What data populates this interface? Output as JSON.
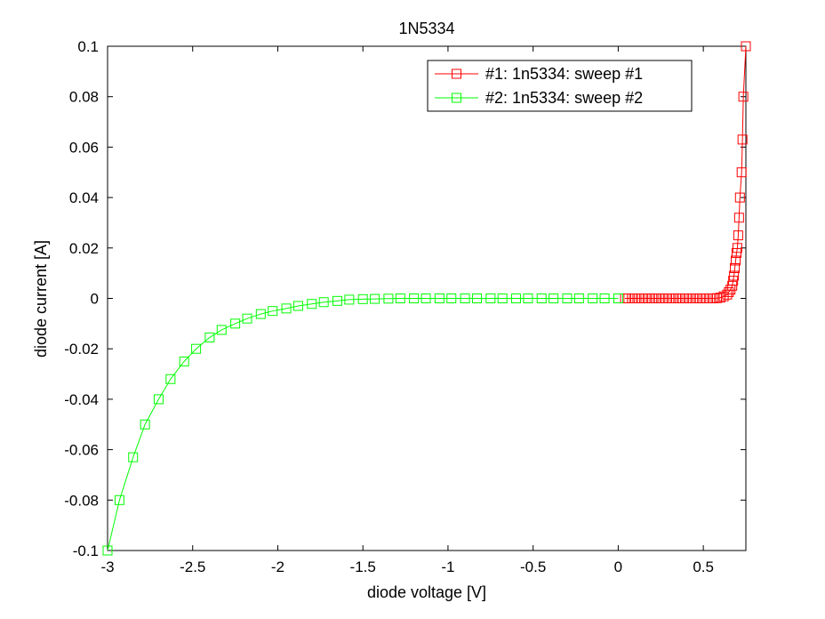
{
  "chart_data": {
    "type": "line",
    "title": "1N5334",
    "xlabel": "diode voltage [V]",
    "ylabel": "diode current [A]",
    "xlim": [
      -3,
      0.75
    ],
    "ylim": [
      -0.1,
      0.1
    ],
    "xticks": [
      -3,
      -2.5,
      -2,
      -1.5,
      -1,
      -0.5,
      0,
      0.5
    ],
    "xtick_labels": [
      "-3",
      "-2.5",
      "-2",
      "-1.5",
      "-1",
      "-0.5",
      "0",
      "0.5"
    ],
    "yticks": [
      -0.1,
      -0.08,
      -0.06,
      -0.04,
      -0.02,
      0,
      0.02,
      0.04,
      0.06,
      0.08,
      0.1
    ],
    "ytick_labels": [
      "-0.1",
      "-0.08",
      "-0.06",
      "-0.04",
      "-0.02",
      "0",
      "0.02",
      "0.04",
      "0.06",
      "0.08",
      "0.1"
    ],
    "grid": false,
    "legend_position": "top-right",
    "marker": "square",
    "series": [
      {
        "name": "#1: 1n5334: sweep #1",
        "color": "#ff0000",
        "points": [
          [
            0.04,
            0
          ],
          [
            0.06,
            0
          ],
          [
            0.08,
            0
          ],
          [
            0.1,
            0
          ],
          [
            0.12,
            0
          ],
          [
            0.14,
            0
          ],
          [
            0.16,
            0
          ],
          [
            0.18,
            0
          ],
          [
            0.2,
            0
          ],
          [
            0.22,
            0
          ],
          [
            0.24,
            0
          ],
          [
            0.26,
            0
          ],
          [
            0.28,
            0
          ],
          [
            0.3,
            0
          ],
          [
            0.32,
            0
          ],
          [
            0.34,
            0
          ],
          [
            0.36,
            0
          ],
          [
            0.38,
            0
          ],
          [
            0.4,
            0
          ],
          [
            0.42,
            0
          ],
          [
            0.44,
            0
          ],
          [
            0.46,
            0
          ],
          [
            0.48,
            0
          ],
          [
            0.5,
            0
          ],
          [
            0.52,
            0
          ],
          [
            0.54,
            0
          ],
          [
            0.56,
            0
          ],
          [
            0.58,
            0.0001
          ],
          [
            0.6,
            0.0003
          ],
          [
            0.62,
            0.0008
          ],
          [
            0.64,
            0.0015
          ],
          [
            0.65,
            0.0025
          ],
          [
            0.66,
            0.0035
          ],
          [
            0.67,
            0.005
          ],
          [
            0.675,
            0.007
          ],
          [
            0.68,
            0.009
          ],
          [
            0.685,
            0.012
          ],
          [
            0.69,
            0.015
          ],
          [
            0.695,
            0.018
          ],
          [
            0.7,
            0.02
          ],
          [
            0.705,
            0.025
          ],
          [
            0.71,
            0.032
          ],
          [
            0.715,
            0.04
          ],
          [
            0.725,
            0.05
          ],
          [
            0.73,
            0.063
          ],
          [
            0.735,
            0.08
          ],
          [
            0.75,
            0.1
          ]
        ]
      },
      {
        "name": "#2: 1n5334: sweep #2",
        "color": "#00ff00",
        "points": [
          [
            -3.0,
            -0.1
          ],
          [
            -2.93,
            -0.08
          ],
          [
            -2.85,
            -0.063
          ],
          [
            -2.78,
            -0.05
          ],
          [
            -2.7,
            -0.04
          ],
          [
            -2.63,
            -0.032
          ],
          [
            -2.55,
            -0.025
          ],
          [
            -2.48,
            -0.02
          ],
          [
            -2.4,
            -0.0155
          ],
          [
            -2.33,
            -0.0125
          ],
          [
            -2.25,
            -0.01
          ],
          [
            -2.18,
            -0.008
          ],
          [
            -2.1,
            -0.0062
          ],
          [
            -2.03,
            -0.005
          ],
          [
            -1.95,
            -0.004
          ],
          [
            -1.88,
            -0.003
          ],
          [
            -1.8,
            -0.0022
          ],
          [
            -1.73,
            -0.0015
          ],
          [
            -1.65,
            -0.001
          ],
          [
            -1.58,
            -0.0005
          ],
          [
            -1.5,
            -0.0003
          ],
          [
            -1.43,
            -0.0002
          ],
          [
            -1.35,
            -0.0001
          ],
          [
            -1.28,
            0
          ],
          [
            -1.2,
            0
          ],
          [
            -1.13,
            0
          ],
          [
            -1.05,
            0
          ],
          [
            -0.98,
            0
          ],
          [
            -0.9,
            0
          ],
          [
            -0.83,
            0
          ],
          [
            -0.75,
            0
          ],
          [
            -0.68,
            0
          ],
          [
            -0.6,
            0
          ],
          [
            -0.53,
            0
          ],
          [
            -0.45,
            0
          ],
          [
            -0.38,
            0
          ],
          [
            -0.3,
            0
          ],
          [
            -0.23,
            0
          ],
          [
            -0.15,
            0
          ],
          [
            -0.08,
            0
          ],
          [
            0,
            0
          ]
        ]
      }
    ]
  }
}
